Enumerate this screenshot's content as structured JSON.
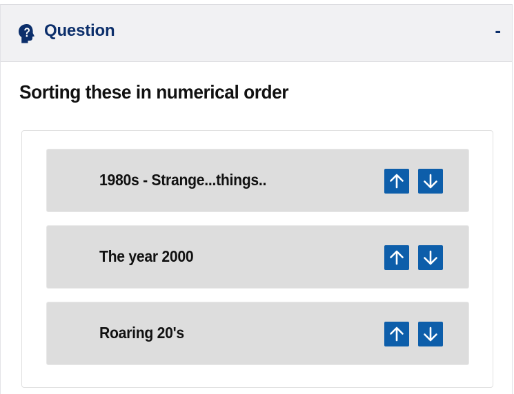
{
  "panel": {
    "title": "Question",
    "title_icon": "question-circle-icon",
    "collapse_label": "-"
  },
  "question": {
    "prompt": "Sorting these in numerical order"
  },
  "sort_items": [
    {
      "label": "1980s - Strange...things..",
      "up_icon": "arrow-up-icon",
      "down_icon": "arrow-down-icon"
    },
    {
      "label": "The year 2000",
      "up_icon": "arrow-up-icon",
      "down_icon": "arrow-down-icon"
    },
    {
      "label": "Roaring 20's",
      "up_icon": "arrow-up-icon",
      "down_icon": "arrow-down-icon"
    }
  ],
  "colors": {
    "header_text": "#0c2f6b",
    "header_bg": "#f1f1f3",
    "item_bg": "#dddddd",
    "button_bg": "#0d5eaa"
  }
}
